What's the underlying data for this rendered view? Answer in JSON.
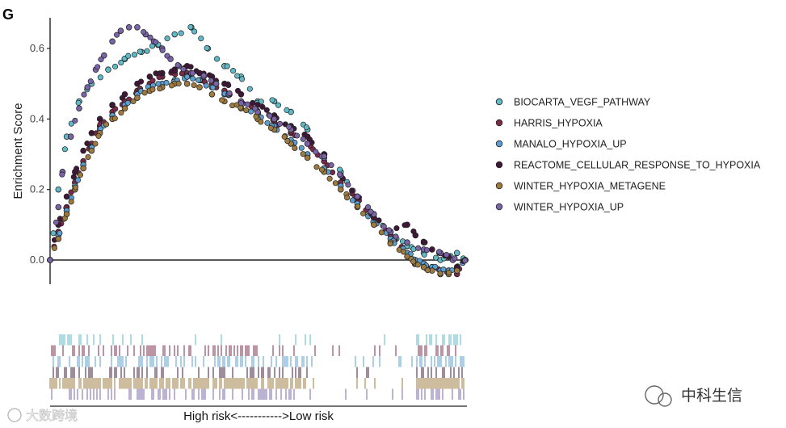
{
  "panel_label": "G",
  "risk_axis_label": "High risk<----------->Low risk",
  "watermark_right": "中科生信",
  "watermark_left": "大数跨境",
  "colors": {
    "BIOCARTA_VEGF_PATHWAY": "#5fb9c6",
    "HARRIS_HYPOXIA": "#7a2a48",
    "MANALO_HYPOXIA_UP": "#5a9fcf",
    "REACTOME_CELLULAR_RESPONSE_TO_HYPOXIA": "#3f1838",
    "WINTER_HYPOXIA_METAGENE": "#9e7a3e",
    "WINTER_HYPOXIA_UP": "#7a64a8"
  },
  "chart_data": {
    "type": "scatter",
    "title": "",
    "xlabel": "",
    "ylabel": "Enrichment Score",
    "xlim": [
      0,
      100
    ],
    "ylim": [
      -0.06,
      0.68
    ],
    "yticks": [
      0.0,
      0.2,
      0.4,
      0.6
    ],
    "ytick_labels": [
      "0.0",
      "0.2",
      "0.4",
      "0.6"
    ],
    "series": [
      {
        "name": "BIOCARTA_VEGF_PATHWAY",
        "color": "#5fb9c6",
        "x": [
          0,
          2,
          4,
          7,
          10,
          14,
          18,
          22,
          26,
          30,
          34,
          38,
          42,
          46,
          50,
          54,
          58,
          62,
          66,
          70,
          74,
          78,
          82,
          86,
          90,
          94,
          98,
          100
        ],
        "y": [
          0.0,
          0.2,
          0.35,
          0.45,
          0.5,
          0.54,
          0.57,
          0.59,
          0.61,
          0.64,
          0.66,
          0.6,
          0.55,
          0.52,
          0.45,
          0.45,
          0.42,
          0.37,
          0.3,
          0.25,
          0.18,
          0.12,
          0.08,
          0.04,
          0.02,
          0.0,
          0.02,
          0.0
        ]
      },
      {
        "name": "HARRIS_HYPOXIA",
        "color": "#7a2a48",
        "x": [
          0,
          2,
          4,
          6,
          8,
          10,
          12,
          15,
          18,
          21,
          24,
          27,
          30,
          33,
          36,
          39,
          42,
          46,
          50,
          54,
          58,
          62,
          66,
          70,
          74,
          78,
          82,
          86,
          88,
          90,
          92,
          94,
          96,
          98,
          100
        ],
        "y": [
          0.0,
          0.08,
          0.15,
          0.22,
          0.28,
          0.33,
          0.38,
          0.42,
          0.45,
          0.48,
          0.5,
          0.52,
          0.53,
          0.53,
          0.51,
          0.5,
          0.48,
          0.45,
          0.42,
          0.39,
          0.36,
          0.33,
          0.28,
          0.22,
          0.17,
          0.12,
          0.07,
          0.02,
          -0.01,
          -0.02,
          -0.02,
          -0.03,
          -0.03,
          -0.04,
          0.0
        ]
      },
      {
        "name": "MANALO_HYPOXIA_UP",
        "color": "#5a9fcf",
        "x": [
          0,
          2,
          4,
          6,
          8,
          10,
          12,
          15,
          18,
          21,
          24,
          27,
          30,
          33,
          36,
          39,
          42,
          46,
          50,
          54,
          58,
          62,
          66,
          70,
          74,
          78,
          82,
          86,
          88,
          90,
          92,
          94,
          96,
          98,
          100
        ],
        "y": [
          0.0,
          0.07,
          0.14,
          0.21,
          0.27,
          0.32,
          0.37,
          0.41,
          0.44,
          0.47,
          0.49,
          0.5,
          0.51,
          0.52,
          0.51,
          0.49,
          0.47,
          0.44,
          0.41,
          0.38,
          0.34,
          0.3,
          0.26,
          0.21,
          0.16,
          0.11,
          0.06,
          0.02,
          0.0,
          -0.01,
          -0.02,
          -0.03,
          -0.03,
          -0.02,
          0.0
        ]
      },
      {
        "name": "REACTOME_CELLULAR_RESPONSE_TO_HYPOXIA",
        "color": "#3f1838",
        "x": [
          0,
          2,
          4,
          6,
          8,
          10,
          12,
          15,
          18,
          21,
          24,
          27,
          30,
          33,
          36,
          39,
          42,
          46,
          50,
          54,
          58,
          62,
          66,
          70,
          74,
          78,
          82,
          86,
          88,
          90,
          92,
          94,
          96,
          98,
          100
        ],
        "y": [
          0.0,
          0.1,
          0.18,
          0.25,
          0.31,
          0.36,
          0.4,
          0.44,
          0.47,
          0.5,
          0.52,
          0.53,
          0.54,
          0.55,
          0.53,
          0.52,
          0.5,
          0.47,
          0.44,
          0.41,
          0.38,
          0.35,
          0.3,
          0.24,
          0.18,
          0.12,
          0.08,
          0.1,
          0.07,
          0.05,
          0.03,
          0.02,
          0.01,
          -0.02,
          0.0
        ]
      },
      {
        "name": "WINTER_HYPOXIA_METAGENE",
        "color": "#9e7a3e",
        "x": [
          0,
          2,
          4,
          6,
          8,
          10,
          12,
          15,
          18,
          21,
          24,
          27,
          30,
          33,
          36,
          39,
          42,
          46,
          50,
          54,
          58,
          62,
          66,
          70,
          74,
          78,
          82,
          86,
          88,
          90,
          92,
          94,
          96,
          98,
          100
        ],
        "y": [
          0.0,
          0.06,
          0.13,
          0.2,
          0.26,
          0.31,
          0.36,
          0.4,
          0.43,
          0.46,
          0.48,
          0.49,
          0.5,
          0.5,
          0.49,
          0.47,
          0.45,
          0.43,
          0.4,
          0.37,
          0.33,
          0.29,
          0.25,
          0.2,
          0.15,
          0.1,
          0.05,
          0.01,
          -0.01,
          -0.02,
          -0.03,
          -0.04,
          -0.04,
          -0.03,
          0.0
        ]
      },
      {
        "name": "WINTER_HYPOXIA_UP",
        "color": "#7a64a8",
        "x": [
          0,
          2,
          3,
          5,
          7,
          9,
          11,
          13,
          15,
          17,
          19,
          21,
          23,
          25,
          27,
          29,
          31,
          34,
          37,
          40,
          43,
          46,
          50,
          54,
          58,
          62,
          66,
          70,
          74,
          78,
          82,
          86,
          90,
          94,
          97,
          100
        ],
        "y": [
          0.0,
          0.15,
          0.25,
          0.35,
          0.43,
          0.49,
          0.54,
          0.58,
          0.62,
          0.65,
          0.66,
          0.66,
          0.64,
          0.62,
          0.6,
          0.57,
          0.55,
          0.53,
          0.52,
          0.5,
          0.47,
          0.45,
          0.42,
          0.4,
          0.37,
          0.33,
          0.29,
          0.24,
          0.18,
          0.13,
          0.08,
          0.05,
          0.03,
          0.02,
          0.0,
          0.0
        ]
      }
    ],
    "legend_position": "right"
  }
}
